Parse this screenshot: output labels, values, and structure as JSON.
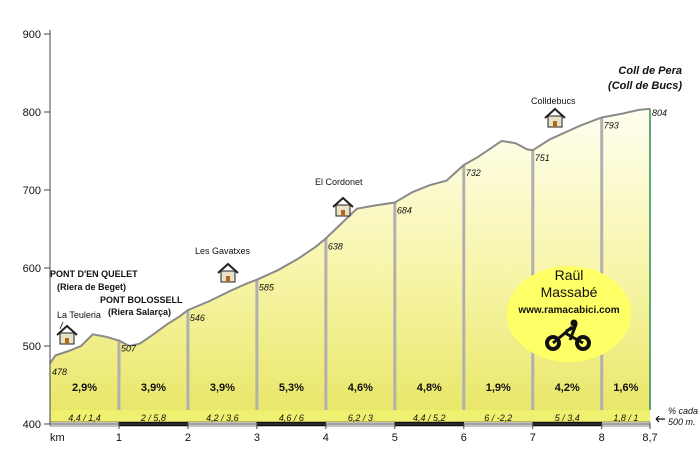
{
  "chart_data": {
    "type": "area",
    "title_lines": [
      "Coll de Pera",
      "(Coll de Bucs)"
    ],
    "xlabel": "km",
    "ylim": [
      400,
      900
    ],
    "xlim": [
      0,
      8.7
    ],
    "y_ticks": [
      "400",
      "500",
      "600",
      "700",
      "800",
      "900"
    ],
    "x_ticks": [
      {
        "x": 1,
        "label": "1"
      },
      {
        "x": 2,
        "label": "2"
      },
      {
        "x": 3,
        "label": "3"
      },
      {
        "x": 4,
        "label": "4"
      },
      {
        "x": 5,
        "label": "5"
      },
      {
        "x": 6,
        "label": "6"
      },
      {
        "x": 7,
        "label": "7"
      },
      {
        "x": 8,
        "label": "8"
      },
      {
        "x": 8.7,
        "label": "8,7"
      }
    ],
    "profile": [
      [
        0,
        478
      ],
      [
        0.08,
        488
      ],
      [
        0.25,
        493
      ],
      [
        0.45,
        500
      ],
      [
        0.62,
        515
      ],
      [
        0.8,
        512
      ],
      [
        1,
        507
      ],
      [
        1.15,
        500
      ],
      [
        1.3,
        503
      ],
      [
        1.5,
        515
      ],
      [
        1.7,
        528
      ],
      [
        1.88,
        538
      ],
      [
        2,
        546
      ],
      [
        2.3,
        557
      ],
      [
        2.6,
        570
      ],
      [
        2.85,
        580
      ],
      [
        3,
        585
      ],
      [
        3.3,
        597
      ],
      [
        3.6,
        612
      ],
      [
        3.85,
        627
      ],
      [
        4,
        638
      ],
      [
        4.2,
        655
      ],
      [
        4.45,
        676
      ],
      [
        4.7,
        680
      ],
      [
        5,
        684
      ],
      [
        5.25,
        697
      ],
      [
        5.5,
        706
      ],
      [
        5.75,
        712
      ],
      [
        6,
        732
      ],
      [
        6.2,
        742
      ],
      [
        6.55,
        763
      ],
      [
        6.75,
        760
      ],
      [
        6.92,
        752
      ],
      [
        7,
        751
      ],
      [
        7.25,
        765
      ],
      [
        7.5,
        775
      ],
      [
        7.7,
        783
      ],
      [
        8,
        793
      ],
      [
        8.3,
        798
      ],
      [
        8.55,
        803
      ],
      [
        8.7,
        804
      ]
    ],
    "km_points": [
      {
        "km": 0,
        "alt": 478,
        "label": "478"
      },
      {
        "km": 1,
        "alt": 507,
        "label": "507"
      },
      {
        "km": 2,
        "alt": 546,
        "label": "546"
      },
      {
        "km": 3,
        "alt": 585,
        "label": "585"
      },
      {
        "km": 4,
        "alt": 638,
        "label": "638"
      },
      {
        "km": 5,
        "alt": 684,
        "label": "684"
      },
      {
        "km": 6,
        "alt": 732,
        "label": "732"
      },
      {
        "km": 7,
        "alt": 751,
        "label": "751"
      },
      {
        "km": 8,
        "alt": 793,
        "label": "793"
      },
      {
        "km": 8.7,
        "alt": 804,
        "label": "804"
      }
    ],
    "segments": [
      {
        "from": 0,
        "to": 1,
        "avg": "2,9%",
        "detail": "4,4  /  1,4"
      },
      {
        "from": 1,
        "to": 2,
        "avg": "3,9%",
        "detail": "2  /  5,8"
      },
      {
        "from": 2,
        "to": 3,
        "avg": "3,9%",
        "detail": "4,2  /  3,6"
      },
      {
        "from": 3,
        "to": 4,
        "avg": "5,3%",
        "detail": "4,6  /  6"
      },
      {
        "from": 4,
        "to": 5,
        "avg": "4,6%",
        "detail": "6,2  /  3"
      },
      {
        "from": 5,
        "to": 6,
        "avg": "4,8%",
        "detail": "4,4  /  5,2"
      },
      {
        "from": 6,
        "to": 7,
        "avg": "1,9%",
        "detail": "6  /  -2,2"
      },
      {
        "from": 7,
        "to": 8,
        "avg": "4,2%",
        "detail": "5  /  3,4"
      },
      {
        "from": 8,
        "to": 8.7,
        "avg": "1,6%",
        "detail": "1,8  /  1"
      }
    ],
    "places": [
      {
        "km": 0.23,
        "alt": 512,
        "name": "La Teuleria",
        "style": "normal",
        "house": true
      },
      {
        "km": 0,
        "alt": 0,
        "name": "PONT D'EN QUELET",
        "sub": "(Riera de Beget)",
        "style": "bold",
        "house": false
      },
      {
        "km": 0,
        "alt": 0,
        "name": "PONT BOLOSSELL",
        "sub": "(Riera Salarça)",
        "style": "bold",
        "house": false
      },
      {
        "km": 2.6,
        "alt": 590,
        "name": "Les Gavatxes",
        "style": "normal",
        "house": true
      },
      {
        "km": 4.25,
        "alt": 672,
        "name": "El Cordonet",
        "style": "normal",
        "house": true
      },
      {
        "km": 7.3,
        "alt": 790,
        "name": "Colldebucs",
        "style": "normal",
        "house": true
      }
    ],
    "footnote": [
      "% cada",
      "500 m."
    ],
    "colors": {
      "fill_top": "#fffde0",
      "fill_bottom": "#e8e86a",
      "band": "#f0f070",
      "line": "#8a8a8a",
      "km_marker": "#b0b0b0",
      "end_line": "#2e8b57"
    }
  },
  "watermark": {
    "line1": "Raül",
    "line2": "Massabé",
    "line3": "www.ramacabici.com",
    "icon": "cyclist-icon",
    "bg": "#ffff66"
  }
}
